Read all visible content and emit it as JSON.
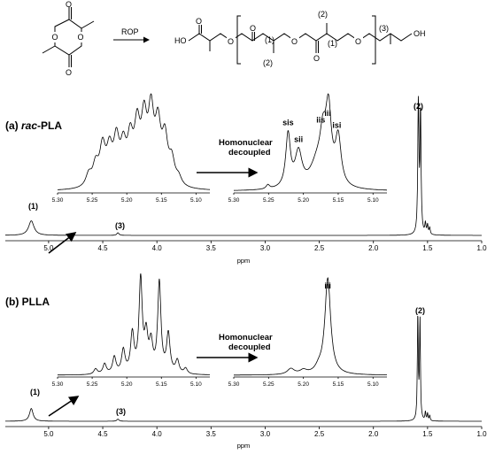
{
  "scheme": {
    "arrow_label": "ROP",
    "atoms": {
      "oxygen": "O",
      "ho": "HO",
      "oh": "OH"
    },
    "position_labels": [
      "(1)",
      "(2)",
      "(1)",
      "(2)",
      "(3)"
    ]
  },
  "chart_data": [
    {
      "type": "line",
      "panel": "a",
      "title_prefix": "(a) ",
      "title_italic": "rac",
      "title_suffix": "-PLA",
      "xlabel": "ppm",
      "xlim": [
        5.4,
        1.0
      ],
      "x_reversed": true,
      "xticks": [
        "5.0",
        "4.5",
        "4.0",
        "3.5",
        "3.0",
        "2.5",
        "2.0",
        "1.5",
        "1.0"
      ],
      "annotations": [
        "(1)",
        "(3)",
        "(2)"
      ],
      "peaks": [
        {
          "x": 5.16,
          "y": 0.11,
          "w": 0.03
        },
        {
          "x": 4.36,
          "y": 0.02,
          "w": 0.012
        },
        {
          "x": 1.585,
          "y": 1.0,
          "w": 0.006
        },
        {
          "x": 1.565,
          "y": 0.92,
          "w": 0.006
        },
        {
          "x": 1.52,
          "y": 0.08,
          "w": 0.006
        },
        {
          "x": 1.5,
          "y": 0.07,
          "w": 0.006
        },
        {
          "x": 1.48,
          "y": 0.05,
          "w": 0.006
        }
      ],
      "insets": [
        {
          "name": "coupled",
          "xlim": [
            5.3,
            5.08
          ],
          "xticks": [
            "5.30",
            "5.25",
            "5.20",
            "5.15",
            "5.10"
          ],
          "peaks": [
            {
              "x": 5.255,
              "y": 0.18,
              "w": 0.005
            },
            {
              "x": 5.245,
              "y": 0.3,
              "w": 0.005
            },
            {
              "x": 5.235,
              "y": 0.55,
              "w": 0.005
            },
            {
              "x": 5.225,
              "y": 0.48,
              "w": 0.005
            },
            {
              "x": 5.215,
              "y": 0.62,
              "w": 0.005
            },
            {
              "x": 5.205,
              "y": 0.5,
              "w": 0.005
            },
            {
              "x": 5.195,
              "y": 0.6,
              "w": 0.005
            },
            {
              "x": 5.185,
              "y": 0.78,
              "w": 0.005
            },
            {
              "x": 5.175,
              "y": 0.86,
              "w": 0.005
            },
            {
              "x": 5.165,
              "y": 0.98,
              "w": 0.005
            },
            {
              "x": 5.155,
              "y": 0.8,
              "w": 0.005
            },
            {
              "x": 5.145,
              "y": 0.65,
              "w": 0.005
            },
            {
              "x": 5.135,
              "y": 0.35,
              "w": 0.005
            },
            {
              "x": 5.125,
              "y": 0.12,
              "w": 0.005
            }
          ]
        },
        {
          "name": "homonuclear-decoupled",
          "xlim": [
            5.3,
            5.08
          ],
          "xticks": [
            "5.30",
            "5.25",
            "5.20",
            "5.15",
            "5.10"
          ],
          "note_lines": [
            "Homonuclear",
            "decoupled"
          ],
          "peak_labels": [
            {
              "text": "sis",
              "x": 5.222
            },
            {
              "text": "sii",
              "x": 5.207
            },
            {
              "text": "iis",
              "x": 5.175
            },
            {
              "text": "iii",
              "x": 5.165
            },
            {
              "text": "isi",
              "x": 5.152
            }
          ],
          "peaks": [
            {
              "x": 5.251,
              "y": 0.05,
              "w": 0.003
            },
            {
              "x": 5.222,
              "y": 0.65,
              "w": 0.004
            },
            {
              "x": 5.207,
              "y": 0.42,
              "w": 0.006
            },
            {
              "x": 5.18,
              "y": 0.3,
              "w": 0.012
            },
            {
              "x": 5.172,
              "y": 0.45,
              "w": 0.005
            },
            {
              "x": 5.164,
              "y": 0.88,
              "w": 0.005
            },
            {
              "x": 5.15,
              "y": 0.58,
              "w": 0.005
            }
          ]
        }
      ]
    },
    {
      "type": "line",
      "panel": "b",
      "title_prefix": "(b) ",
      "title_italic": "",
      "title_suffix": "PLLA",
      "xlabel": "ppm",
      "xlim": [
        5.4,
        1.0
      ],
      "x_reversed": true,
      "xticks": [
        "5.0",
        "4.5",
        "4.0",
        "3.5",
        "3.0",
        "2.5",
        "2.0",
        "1.5",
        "1.0"
      ],
      "annotations": [
        "(1)",
        "(3)",
        "(2)"
      ],
      "peaks": [
        {
          "x": 5.16,
          "y": 0.12,
          "w": 0.02
        },
        {
          "x": 4.36,
          "y": 0.02,
          "w": 0.012
        },
        {
          "x": 1.59,
          "y": 1.0,
          "w": 0.005
        },
        {
          "x": 1.57,
          "y": 0.95,
          "w": 0.005
        },
        {
          "x": 1.52,
          "y": 0.08,
          "w": 0.005
        },
        {
          "x": 1.5,
          "y": 0.07,
          "w": 0.005
        },
        {
          "x": 1.48,
          "y": 0.05,
          "w": 0.005
        }
      ],
      "insets": [
        {
          "name": "coupled",
          "xlim": [
            5.3,
            5.08
          ],
          "xticks": [
            "5.30",
            "5.25",
            "5.20",
            "5.15",
            "5.10"
          ],
          "peaks": [
            {
              "x": 5.245,
              "y": 0.06,
              "w": 0.003
            },
            {
              "x": 5.232,
              "y": 0.11,
              "w": 0.003
            },
            {
              "x": 5.218,
              "y": 0.18,
              "w": 0.003
            },
            {
              "x": 5.205,
              "y": 0.25,
              "w": 0.003
            },
            {
              "x": 5.192,
              "y": 0.42,
              "w": 0.003
            },
            {
              "x": 5.18,
              "y": 1.0,
              "w": 0.0028
            },
            {
              "x": 5.172,
              "y": 0.38,
              "w": 0.003
            },
            {
              "x": 5.165,
              "y": 0.3,
              "w": 0.003
            },
            {
              "x": 5.153,
              "y": 0.98,
              "w": 0.0028
            },
            {
              "x": 5.14,
              "y": 0.42,
              "w": 0.003
            },
            {
              "x": 5.127,
              "y": 0.14,
              "w": 0.003
            },
            {
              "x": 5.115,
              "y": 0.06,
              "w": 0.003
            }
          ]
        },
        {
          "name": "homonuclear-decoupled",
          "xlim": [
            5.3,
            5.08
          ],
          "xticks": [
            "5.30",
            "5.25",
            "5.20",
            "5.15",
            "5.10"
          ],
          "note_lines": [
            "Homonuclear",
            "decoupled"
          ],
          "peak_labels": [
            {
              "text": "iii",
              "x": 5.165
            }
          ],
          "peaks": [
            {
              "x": 5.218,
              "y": 0.06,
              "w": 0.006
            },
            {
              "x": 5.2,
              "y": 0.04,
              "w": 0.006
            },
            {
              "x": 5.178,
              "y": 0.05,
              "w": 0.006
            },
            {
              "x": 5.165,
              "y": 1.0,
              "w": 0.005
            }
          ]
        }
      ]
    }
  ]
}
